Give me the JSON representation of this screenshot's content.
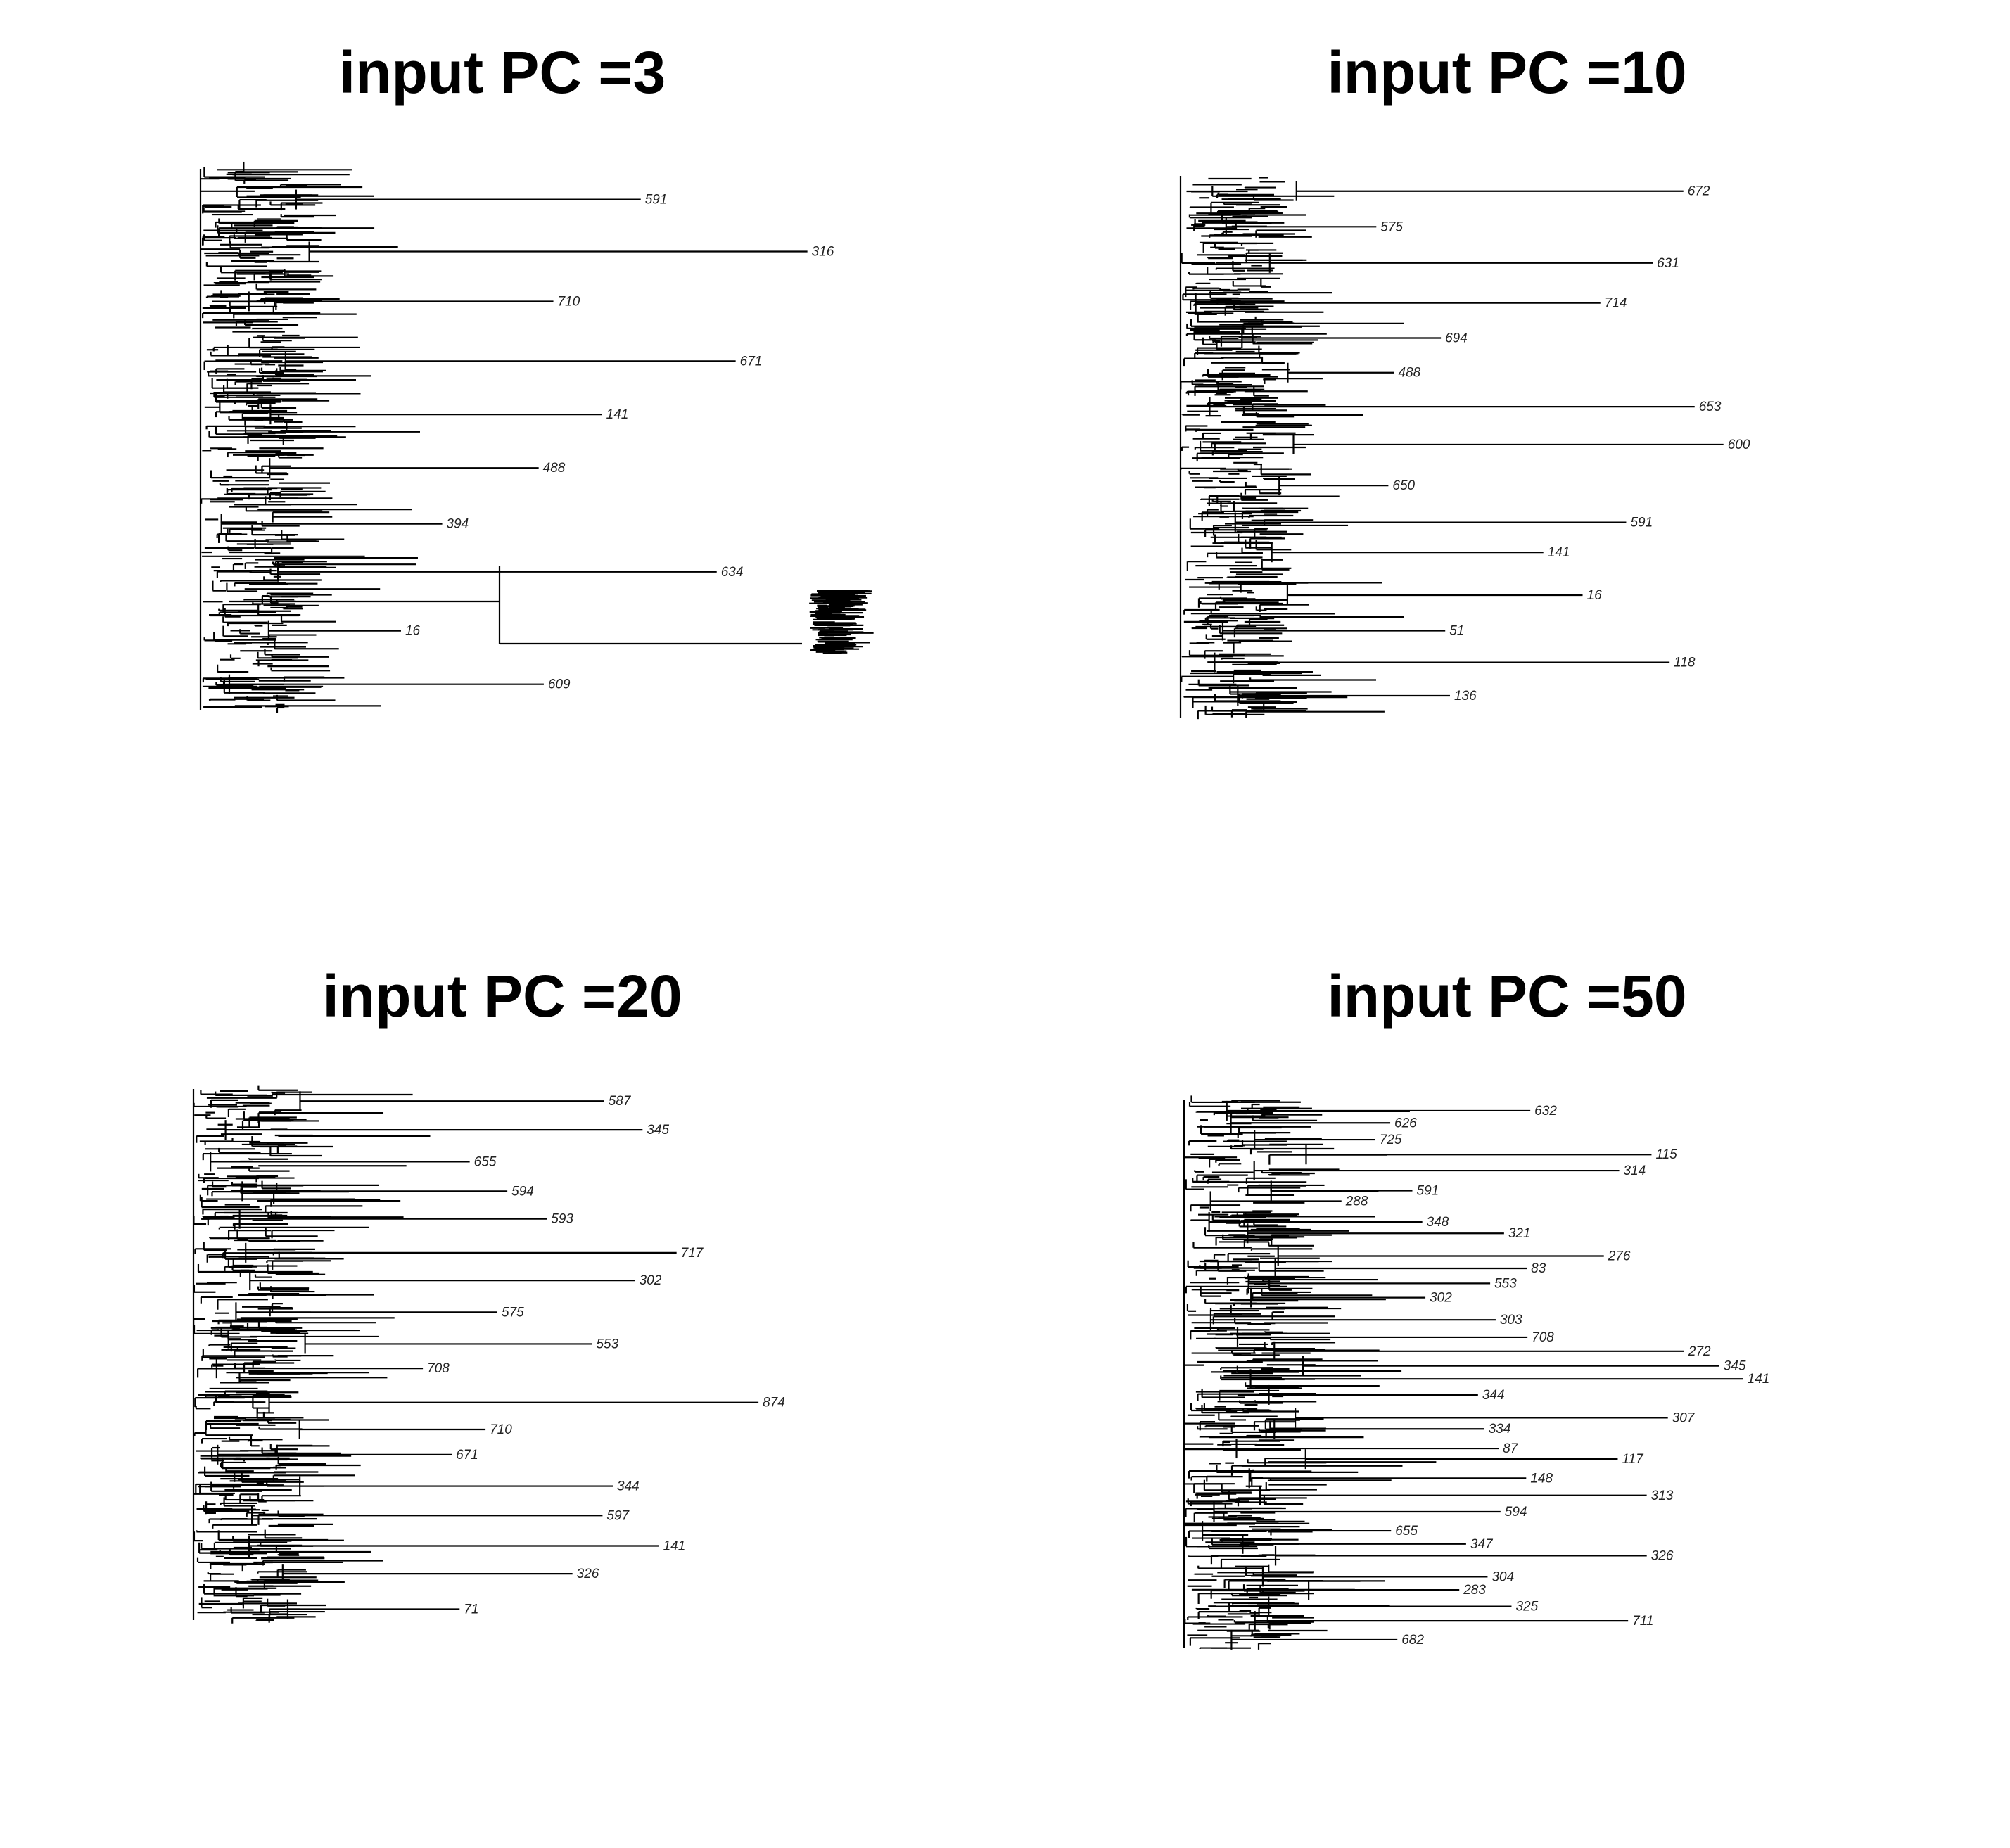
{
  "panels": [
    {
      "title": "input PC =3",
      "tip_labels": [
        "591",
        "316",
        "710",
        "671",
        "141",
        "488",
        "394",
        "634",
        "16",
        "609"
      ],
      "extent": 1.0
    },
    {
      "title": "input PC =10",
      "tip_labels": [
        "672",
        "575",
        "631",
        "714",
        "694",
        "488",
        "653",
        "600",
        "650",
        "591",
        "141",
        "16",
        "51",
        "118",
        "136"
      ],
      "extent": 1.0
    },
    {
      "title": "input PC =20",
      "tip_labels": [
        "587",
        "345",
        "655",
        "594",
        "593",
        "717",
        "302",
        "575",
        "553",
        "708",
        "874",
        "710",
        "671",
        "344",
        "597",
        "141",
        "326",
        "71"
      ],
      "extent": 1.0
    },
    {
      "title": "input PC =50",
      "tip_labels": [
        "632",
        "626",
        "725",
        "115",
        "314",
        "591",
        "288",
        "348",
        "321",
        "276",
        "83",
        "553",
        "302",
        "303",
        "708",
        "272",
        "345",
        "141",
        "344",
        "307",
        "334",
        "87",
        "117",
        "148",
        "313",
        "594",
        "655",
        "347",
        "326",
        "304",
        "283",
        "325",
        "711",
        "682"
      ],
      "extent": 1.0
    }
  ]
}
